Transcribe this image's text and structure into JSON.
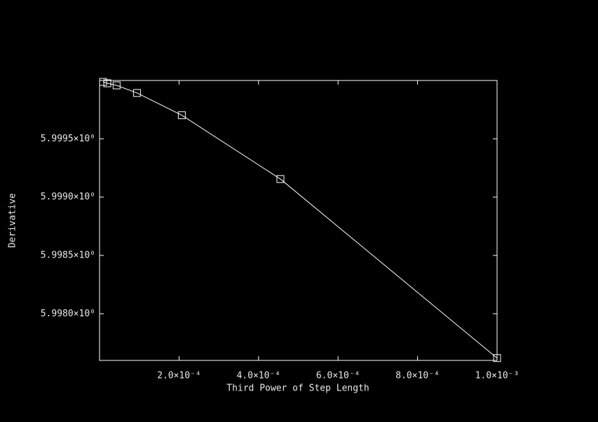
{
  "chart_data": {
    "type": "line",
    "xlabel": "Third Power of Step Length",
    "ylabel": "Derivative",
    "x": [
      8.9e-06,
      1.95e-05,
      4.29e-05,
      9.42e-05,
      0.000207,
      0.000455,
      0.001
    ],
    "series": [
      {
        "color": "#ffffff",
        "values": [
          5.999988,
          5.999976,
          5.999958,
          5.999893,
          5.999702,
          5.999155,
          5.99762
        ]
      }
    ],
    "xlim": [
      0,
      0.001
    ],
    "ylim": [
      5.9976,
      6.0
    ],
    "xticks": [
      {
        "value": 0.0002,
        "label": "2.0×10⁻⁴"
      },
      {
        "value": 0.0004,
        "label": "4.0×10⁻⁴"
      },
      {
        "value": 0.0006,
        "label": "6.0×10⁻⁴"
      },
      {
        "value": 0.0008,
        "label": "8.0×10⁻⁴"
      },
      {
        "value": 0.001,
        "label": "1.0×10⁻³"
      }
    ],
    "yticks": [
      {
        "value": 5.998,
        "label": "5.9980×10⁰"
      },
      {
        "value": 5.9985,
        "label": "5.9985×10⁰"
      },
      {
        "value": 5.999,
        "label": "5.9990×10⁰"
      },
      {
        "value": 5.9995,
        "label": "5.9995×10⁰"
      }
    ],
    "marker": "square"
  }
}
